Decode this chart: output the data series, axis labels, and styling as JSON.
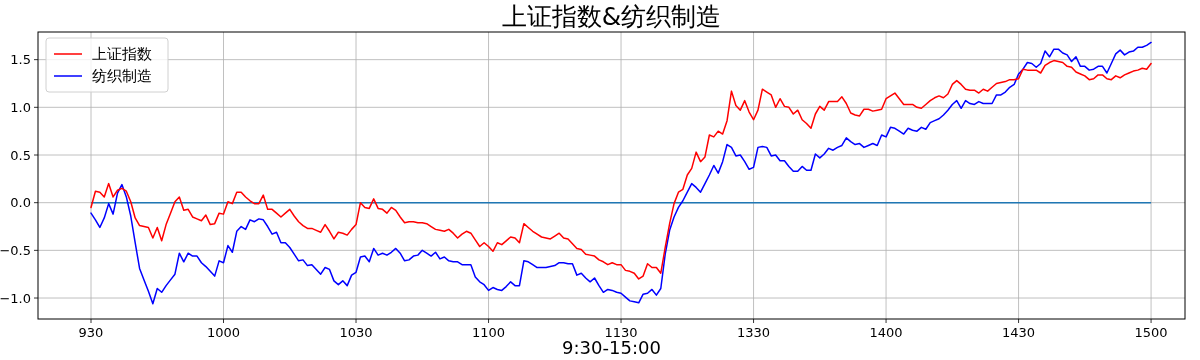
{
  "chart_data": {
    "type": "line",
    "title": "上证指数&纺织制造",
    "xlabel": "9:30-15:00",
    "categories": [
      "930",
      null,
      null,
      null,
      null,
      null,
      null,
      null,
      null,
      null,
      null,
      null,
      null,
      null,
      null,
      null,
      null,
      null,
      null,
      null,
      null,
      null,
      null,
      null,
      null,
      null,
      null,
      null,
      null,
      null,
      "1000",
      null,
      null,
      null,
      null,
      null,
      null,
      null,
      null,
      null,
      null,
      null,
      null,
      null,
      null,
      null,
      null,
      null,
      null,
      null,
      null,
      null,
      null,
      null,
      null,
      null,
      null,
      null,
      null,
      null,
      "1030",
      null,
      null,
      null,
      null,
      null,
      null,
      null,
      null,
      null,
      null,
      null,
      null,
      null,
      null,
      null,
      null,
      null,
      null,
      null,
      null,
      null,
      null,
      null,
      null,
      null,
      null,
      null,
      null,
      null,
      "1100",
      null,
      null,
      null,
      null,
      null,
      null,
      null,
      null,
      null,
      null,
      null,
      null,
      null,
      null,
      null,
      null,
      null,
      null,
      null,
      null,
      null,
      null,
      null,
      null,
      null,
      null,
      null,
      null,
      null,
      "1130",
      null,
      null,
      null,
      null,
      null,
      null,
      null,
      null,
      null,
      null,
      null,
      null,
      null,
      null,
      null,
      null,
      null,
      null,
      null,
      null,
      null,
      null,
      null,
      null,
      null,
      null,
      null,
      null,
      null,
      "1330",
      null,
      null,
      null,
      null,
      null,
      null,
      null,
      null,
      null,
      null,
      null,
      null,
      null,
      null,
      null,
      null,
      null,
      null,
      null,
      null,
      null,
      null,
      null,
      null,
      null,
      null,
      null,
      null,
      null,
      "1400",
      null,
      null,
      null,
      null,
      null,
      null,
      null,
      null,
      null,
      null,
      null,
      null,
      null,
      null,
      null,
      null,
      null,
      null,
      null,
      null,
      null,
      null,
      null,
      null,
      null,
      null,
      null,
      null,
      null,
      "1430",
      null,
      null,
      null,
      null,
      null,
      null,
      null,
      null,
      null,
      null,
      null,
      null,
      null,
      null,
      null,
      null,
      null,
      null,
      null,
      null,
      null,
      null,
      null,
      null,
      null,
      null,
      null,
      null,
      null,
      "1500"
    ],
    "ylim": [
      -1.22,
      1.79
    ],
    "yticks": [
      {
        "value": -1,
        "label": "−1.0"
      },
      {
        "value": -0.5,
        "label": "−0.5"
      },
      {
        "value": 0,
        "label": "0.0"
      },
      {
        "value": 0.5,
        "label": "0.5"
      },
      {
        "value": 1,
        "label": "1.0"
      },
      {
        "value": 1.5,
        "label": "1.5"
      }
    ],
    "grid": true,
    "legend": "top left",
    "line_style": "solid",
    "ref_lines": [
      {
        "axis": "y",
        "value": 0,
        "color": "#1f77b4"
      }
    ],
    "series": [
      {
        "name": "上证指数",
        "color": "#ff0000",
        "values": [
          -0.05,
          0.12,
          0.11,
          0.06,
          0.2,
          0.06,
          0.13,
          0.15,
          0.12,
          0.01,
          -0.16,
          -0.24,
          -0.25,
          -0.26,
          -0.37,
          -0.26,
          -0.4,
          -0.23,
          -0.11,
          0.01,
          0.06,
          -0.08,
          -0.07,
          -0.15,
          -0.17,
          -0.19,
          -0.13,
          -0.23,
          -0.22,
          -0.11,
          -0.12,
          0.01,
          -0.01,
          0.11,
          0.11,
          0.06,
          0.02,
          -0.01,
          -0.01,
          0.08,
          -0.07,
          -0.07,
          -0.11,
          -0.15,
          -0.11,
          -0.07,
          -0.14,
          -0.2,
          -0.24,
          -0.27,
          -0.27,
          -0.29,
          -0.31,
          -0.23,
          -0.3,
          -0.38,
          -0.31,
          -0.32,
          -0.34,
          -0.28,
          -0.23,
          0.0,
          -0.05,
          -0.06,
          0.04,
          -0.06,
          -0.07,
          -0.11,
          -0.05,
          -0.08,
          -0.15,
          -0.21,
          -0.2,
          -0.2,
          -0.21,
          -0.21,
          -0.22,
          -0.25,
          -0.28,
          -0.29,
          -0.3,
          -0.28,
          -0.32,
          -0.37,
          -0.33,
          -0.3,
          -0.32,
          -0.39,
          -0.46,
          -0.42,
          -0.46,
          -0.51,
          -0.42,
          -0.44,
          -0.4,
          -0.36,
          -0.37,
          -0.42,
          -0.22,
          -0.26,
          -0.3,
          -0.33,
          -0.36,
          -0.37,
          -0.38,
          -0.35,
          -0.32,
          -0.37,
          -0.38,
          -0.43,
          -0.48,
          -0.49,
          -0.54,
          -0.55,
          -0.56,
          -0.6,
          -0.62,
          -0.65,
          -0.63,
          -0.65,
          -0.65,
          -0.71,
          -0.72,
          -0.74,
          -0.8,
          -0.77,
          -0.64,
          -0.68,
          -0.68,
          -0.74,
          -0.47,
          -0.22,
          -0.01,
          0.11,
          0.14,
          0.29,
          0.36,
          0.53,
          0.43,
          0.48,
          0.71,
          0.69,
          0.75,
          0.72,
          0.86,
          1.17,
          1.02,
          0.97,
          1.07,
          0.95,
          0.87,
          0.97,
          1.19,
          1.16,
          1.13,
          1.0,
          1.09,
          1.01,
          1.0,
          0.93,
          0.97,
          0.87,
          0.83,
          0.78,
          0.93,
          1.01,
          0.97,
          1.06,
          1.06,
          1.06,
          1.11,
          1.04,
          0.94,
          0.92,
          0.91,
          0.98,
          0.98,
          0.96,
          0.97,
          0.98,
          1.09,
          1.12,
          1.15,
          1.09,
          1.03,
          1.03,
          1.03,
          1.0,
          0.99,
          1.03,
          1.07,
          1.1,
          1.12,
          1.1,
          1.14,
          1.24,
          1.28,
          1.24,
          1.19,
          1.18,
          1.18,
          1.15,
          1.19,
          1.17,
          1.21,
          1.25,
          1.26,
          1.27,
          1.29,
          1.29,
          1.3,
          1.4,
          1.39,
          1.39,
          1.39,
          1.36,
          1.44,
          1.47,
          1.49,
          1.48,
          1.47,
          1.43,
          1.42,
          1.37,
          1.35,
          1.33,
          1.29,
          1.3,
          1.34,
          1.34,
          1.3,
          1.29,
          1.33,
          1.31,
          1.34,
          1.36,
          1.38,
          1.39,
          1.41,
          1.4,
          1.46
        ]
      },
      {
        "name": "纺织制造",
        "color": "#0000ff",
        "values": [
          -0.11,
          -0.18,
          -0.26,
          -0.16,
          -0.01,
          -0.12,
          0.1,
          0.19,
          0.06,
          -0.14,
          -0.42,
          -0.69,
          -0.81,
          -0.93,
          -1.06,
          -0.9,
          -0.94,
          -0.87,
          -0.81,
          -0.75,
          -0.53,
          -0.62,
          -0.53,
          -0.56,
          -0.56,
          -0.63,
          -0.67,
          -0.72,
          -0.77,
          -0.61,
          -0.63,
          -0.45,
          -0.52,
          -0.3,
          -0.25,
          -0.28,
          -0.18,
          -0.2,
          -0.17,
          -0.18,
          -0.25,
          -0.33,
          -0.31,
          -0.42,
          -0.42,
          -0.47,
          -0.54,
          -0.61,
          -0.6,
          -0.66,
          -0.65,
          -0.7,
          -0.75,
          -0.68,
          -0.7,
          -0.82,
          -0.86,
          -0.82,
          -0.87,
          -0.76,
          -0.73,
          -0.57,
          -0.56,
          -0.62,
          -0.48,
          -0.55,
          -0.53,
          -0.55,
          -0.52,
          -0.48,
          -0.53,
          -0.61,
          -0.6,
          -0.56,
          -0.55,
          -0.5,
          -0.53,
          -0.56,
          -0.52,
          -0.59,
          -0.57,
          -0.61,
          -0.62,
          -0.62,
          -0.65,
          -0.65,
          -0.65,
          -0.78,
          -0.83,
          -0.86,
          -0.92,
          -0.89,
          -0.91,
          -0.92,
          -0.88,
          -0.83,
          -0.87,
          -0.87,
          -0.61,
          -0.62,
          -0.65,
          -0.68,
          -0.68,
          -0.68,
          -0.67,
          -0.66,
          -0.63,
          -0.63,
          -0.64,
          -0.64,
          -0.76,
          -0.74,
          -0.79,
          -0.83,
          -0.79,
          -0.87,
          -0.94,
          -0.91,
          -0.92,
          -0.94,
          -0.95,
          -0.99,
          -1.03,
          -1.04,
          -1.05,
          -0.96,
          -0.95,
          -0.91,
          -0.97,
          -0.9,
          -0.54,
          -0.29,
          -0.15,
          -0.05,
          0.02,
          0.11,
          0.2,
          0.16,
          0.11,
          0.2,
          0.29,
          0.39,
          0.31,
          0.43,
          0.61,
          0.58,
          0.49,
          0.5,
          0.43,
          0.35,
          0.37,
          0.58,
          0.59,
          0.58,
          0.49,
          0.5,
          0.44,
          0.44,
          0.38,
          0.33,
          0.33,
          0.38,
          0.34,
          0.34,
          0.51,
          0.47,
          0.51,
          0.57,
          0.55,
          0.58,
          0.6,
          0.68,
          0.64,
          0.61,
          0.62,
          0.58,
          0.6,
          0.62,
          0.6,
          0.71,
          0.69,
          0.79,
          0.78,
          0.75,
          0.72,
          0.78,
          0.76,
          0.75,
          0.79,
          0.77,
          0.84,
          0.86,
          0.88,
          0.92,
          0.97,
          1.03,
          1.07,
          0.99,
          1.07,
          1.04,
          1.03,
          1.06,
          1.04,
          1.04,
          1.04,
          1.13,
          1.13,
          1.16,
          1.21,
          1.24,
          1.35,
          1.4,
          1.47,
          1.46,
          1.42,
          1.46,
          1.59,
          1.53,
          1.61,
          1.61,
          1.57,
          1.55,
          1.48,
          1.53,
          1.43,
          1.43,
          1.39,
          1.4,
          1.43,
          1.43,
          1.36,
          1.46,
          1.56,
          1.6,
          1.55,
          1.58,
          1.59,
          1.63,
          1.63,
          1.65,
          1.68
        ]
      }
    ]
  }
}
